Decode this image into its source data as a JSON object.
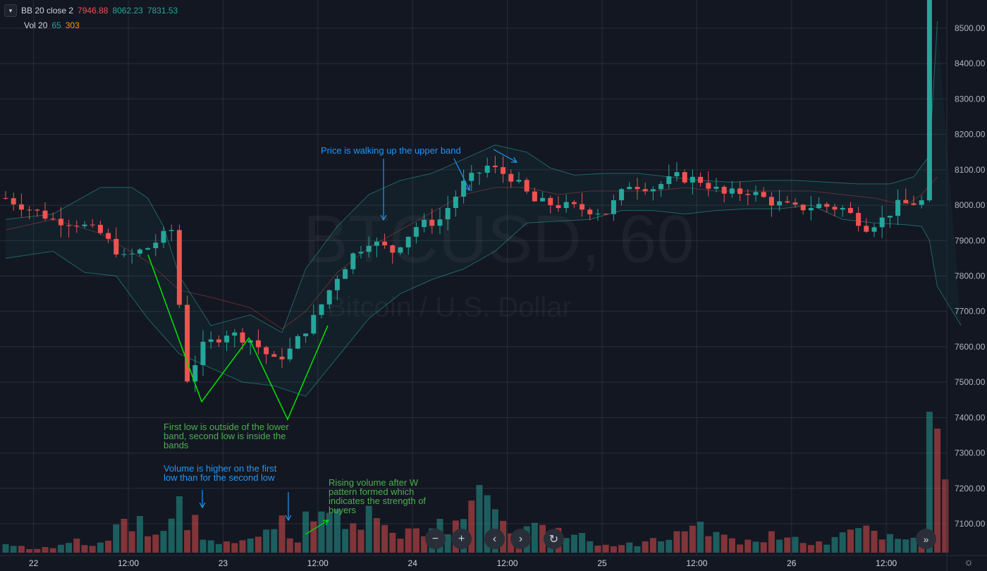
{
  "legend": {
    "bb": {
      "label": "BB 20 close 2",
      "basis": "7946.88",
      "upper": "8062.23",
      "lower": "7831.53"
    },
    "vol": {
      "label": "Vol 20",
      "v1": "65",
      "v2": "303"
    }
  },
  "watermark": {
    "symbol": "BTCUSD, 60",
    "description": "Bitcoin / U.S. Dollar"
  },
  "annotations": {
    "lows": "First low is outside of the lower\nband, second low  is inside the\nbands",
    "volume": "Volume is higher on the first\nlow than for the second low",
    "rising": "Rising volume after W\npattern formed which\nindicates the strength of\nbuyers",
    "walking": "Price is walking up the upper band"
  },
  "nav": {
    "zoom_out": "−",
    "zoom_in": "+",
    "back": "‹",
    "forward": "›",
    "reset": "↻",
    "scroll": "»"
  },
  "colors": {
    "up": "#26a69a",
    "down": "#ef5350",
    "background": "#131722",
    "annot_green": "#4caf50",
    "annot_blue": "#2196f3"
  },
  "chart_data": {
    "type": "candlestick",
    "symbol": "BTCUSD",
    "interval": "60",
    "x_ticks": [
      "22",
      "12:00",
      "23",
      "12:00",
      "24",
      "12:00",
      "25",
      "12:00",
      "26",
      "12:00"
    ],
    "y_ticks": [
      7100,
      7200,
      7300,
      7400,
      7500,
      7600,
      7700,
      7800,
      7900,
      8000,
      8100,
      8200,
      8300,
      8400,
      8500
    ],
    "y_tick_labels": [
      "7100.00",
      "7200.00",
      "7300.00",
      "7400.00",
      "7500.00",
      "7600.00",
      "7700.00",
      "7800.00",
      "7900.00",
      "8000.00",
      "8100.00",
      "8200.00",
      "8300.00",
      "8400.00",
      "8500.00"
    ],
    "ylim": [
      7040,
      8610
    ],
    "close_path": [
      [
        0,
        8020
      ],
      [
        3,
        7990
      ],
      [
        6,
        7960
      ],
      [
        9,
        7950
      ],
      [
        12,
        7920
      ],
      [
        15,
        7850
      ],
      [
        18,
        7880
      ],
      [
        21,
        7930
      ],
      [
        23,
        7510
      ],
      [
        25,
        7600
      ],
      [
        28,
        7640
      ],
      [
        31,
        7620
      ],
      [
        34,
        7560
      ],
      [
        36,
        7590
      ],
      [
        39,
        7680
      ],
      [
        42,
        7800
      ],
      [
        44,
        7860
      ],
      [
        46,
        7900
      ],
      [
        49,
        7870
      ],
      [
        52,
        7940
      ],
      [
        55,
        7960
      ],
      [
        58,
        8060
      ],
      [
        61,
        8110
      ],
      [
        64,
        8080
      ],
      [
        67,
        8010
      ],
      [
        70,
        8000
      ],
      [
        73,
        7990
      ],
      [
        76,
        7980
      ],
      [
        79,
        8060
      ],
      [
        82,
        8050
      ],
      [
        85,
        8080
      ],
      [
        88,
        8070
      ],
      [
        91,
        8030
      ],
      [
        94,
        8040
      ],
      [
        97,
        8010
      ],
      [
        100,
        7990
      ],
      [
        103,
        8000
      ],
      [
        106,
        7990
      ],
      [
        109,
        7940
      ],
      [
        111,
        7960
      ],
      [
        113,
        8000
      ],
      [
        116,
        8010
      ],
      [
        117,
        8560
      ]
    ],
    "bb_upper": [
      [
        0,
        7960
      ],
      [
        6,
        7975
      ],
      [
        12,
        8050
      ],
      [
        16,
        8050
      ],
      [
        18,
        8020
      ],
      [
        20,
        7940
      ],
      [
        22,
        7800
      ],
      [
        26,
        7660
      ],
      [
        31,
        7690
      ],
      [
        35,
        7640
      ],
      [
        38,
        7820
      ],
      [
        42,
        7940
      ],
      [
        46,
        8030
      ],
      [
        50,
        8070
      ],
      [
        54,
        8090
      ],
      [
        58,
        8130
      ],
      [
        62,
        8170
      ],
      [
        66,
        8150
      ],
      [
        69,
        8105
      ],
      [
        72,
        8085
      ],
      [
        76,
        8090
      ],
      [
        80,
        8090
      ],
      [
        84,
        8080
      ],
      [
        88,
        8070
      ],
      [
        92,
        8065
      ],
      [
        96,
        8070
      ],
      [
        100,
        8070
      ],
      [
        104,
        8065
      ],
      [
        108,
        8060
      ],
      [
        112,
        8060
      ],
      [
        115,
        8080
      ],
      [
        117,
        8140
      ],
      [
        118,
        8520
      ]
    ],
    "bb_basis": [
      [
        0,
        7930
      ],
      [
        6,
        7960
      ],
      [
        12,
        7920
      ],
      [
        18,
        7840
      ],
      [
        22,
        7760
      ],
      [
        26,
        7740
      ],
      [
        31,
        7710
      ],
      [
        35,
        7650
      ],
      [
        38,
        7700
      ],
      [
        42,
        7810
      ],
      [
        46,
        7880
      ],
      [
        50,
        7930
      ],
      [
        54,
        7980
      ],
      [
        58,
        8030
      ],
      [
        62,
        8050
      ],
      [
        66,
        8050
      ],
      [
        70,
        8030
      ],
      [
        74,
        8040
      ],
      [
        78,
        8040
      ],
      [
        82,
        8040
      ],
      [
        86,
        8050
      ],
      [
        90,
        8040
      ],
      [
        94,
        8040
      ],
      [
        98,
        8040
      ],
      [
        102,
        8040
      ],
      [
        106,
        8030
      ],
      [
        110,
        8020
      ],
      [
        114,
        8000
      ],
      [
        116,
        8030
      ],
      [
        118,
        8080
      ]
    ],
    "bb_lower": [
      [
        0,
        7850
      ],
      [
        6,
        7870
      ],
      [
        10,
        7810
      ],
      [
        14,
        7800
      ],
      [
        18,
        7680
      ],
      [
        22,
        7580
      ],
      [
        26,
        7540
      ],
      [
        30,
        7500
      ],
      [
        34,
        7490
      ],
      [
        38,
        7460
      ],
      [
        42,
        7570
      ],
      [
        46,
        7680
      ],
      [
        50,
        7750
      ],
      [
        54,
        7790
      ],
      [
        58,
        7820
      ],
      [
        62,
        7870
      ],
      [
        66,
        7950
      ],
      [
        70,
        7955
      ],
      [
        74,
        7960
      ],
      [
        78,
        7985
      ],
      [
        82,
        7985
      ],
      [
        86,
        7975
      ],
      [
        90,
        7985
      ],
      [
        94,
        7990
      ],
      [
        98,
        7990
      ],
      [
        102,
        8000
      ],
      [
        106,
        7960
      ],
      [
        110,
        7950
      ],
      [
        114,
        7945
      ],
      [
        116,
        7940
      ],
      [
        117,
        7900
      ],
      [
        118,
        7770
      ],
      [
        121,
        7660
      ]
    ],
    "volume": {
      "ylim": [
        0,
        40
      ],
      "bars": [
        [
          0,
          1.5,
          0
        ],
        [
          2,
          1.2,
          1
        ],
        [
          5,
          1,
          1
        ],
        [
          9,
          2.5,
          1
        ],
        [
          12,
          1.8,
          0
        ],
        [
          14,
          5,
          0
        ],
        [
          15,
          6,
          1
        ],
        [
          17,
          6.5,
          0
        ],
        [
          19,
          3.2,
          1
        ],
        [
          22,
          10,
          0
        ],
        [
          23,
          4,
          1
        ],
        [
          24,
          6.7,
          1
        ],
        [
          25,
          2.3,
          0
        ],
        [
          28,
          2,
          1
        ],
        [
          31,
          2.5,
          0
        ],
        [
          33,
          4.1,
          0
        ],
        [
          35,
          6.6,
          1
        ],
        [
          37,
          1.8,
          1
        ],
        [
          38,
          7.3,
          0
        ],
        [
          40,
          7.3,
          0
        ],
        [
          42,
          7.7,
          0
        ],
        [
          44,
          5.2,
          1
        ],
        [
          46,
          8.3,
          0
        ],
        [
          48,
          4.9,
          1
        ],
        [
          51,
          4.3,
          1
        ],
        [
          55,
          6,
          0
        ],
        [
          57,
          5.7,
          1
        ],
        [
          60,
          12,
          0
        ],
        [
          62,
          7.7,
          0
        ],
        [
          64,
          3.4,
          1
        ],
        [
          67,
          5.3,
          0
        ],
        [
          70,
          4.4,
          1
        ],
        [
          73,
          3.5,
          0
        ],
        [
          76,
          1.4,
          1
        ],
        [
          79,
          1.8,
          0
        ],
        [
          82,
          2.6,
          1
        ],
        [
          85,
          3.8,
          1
        ],
        [
          88,
          5.5,
          0
        ],
        [
          91,
          3.2,
          1
        ],
        [
          94,
          2.3,
          1
        ],
        [
          97,
          3.8,
          1
        ],
        [
          100,
          2.8,
          0
        ],
        [
          103,
          2,
          1
        ],
        [
          106,
          3.6,
          0
        ],
        [
          109,
          4.8,
          1
        ],
        [
          112,
          3.3,
          0
        ],
        [
          116,
          2.3,
          1
        ],
        [
          117,
          25,
          0
        ],
        [
          118,
          22,
          1
        ],
        [
          119,
          13,
          1
        ]
      ]
    },
    "w_pattern": [
      [
        7860
      ],
      [
        7445
      ],
      [
        7625
      ],
      [
        7395
      ],
      [
        7660
      ]
    ]
  }
}
